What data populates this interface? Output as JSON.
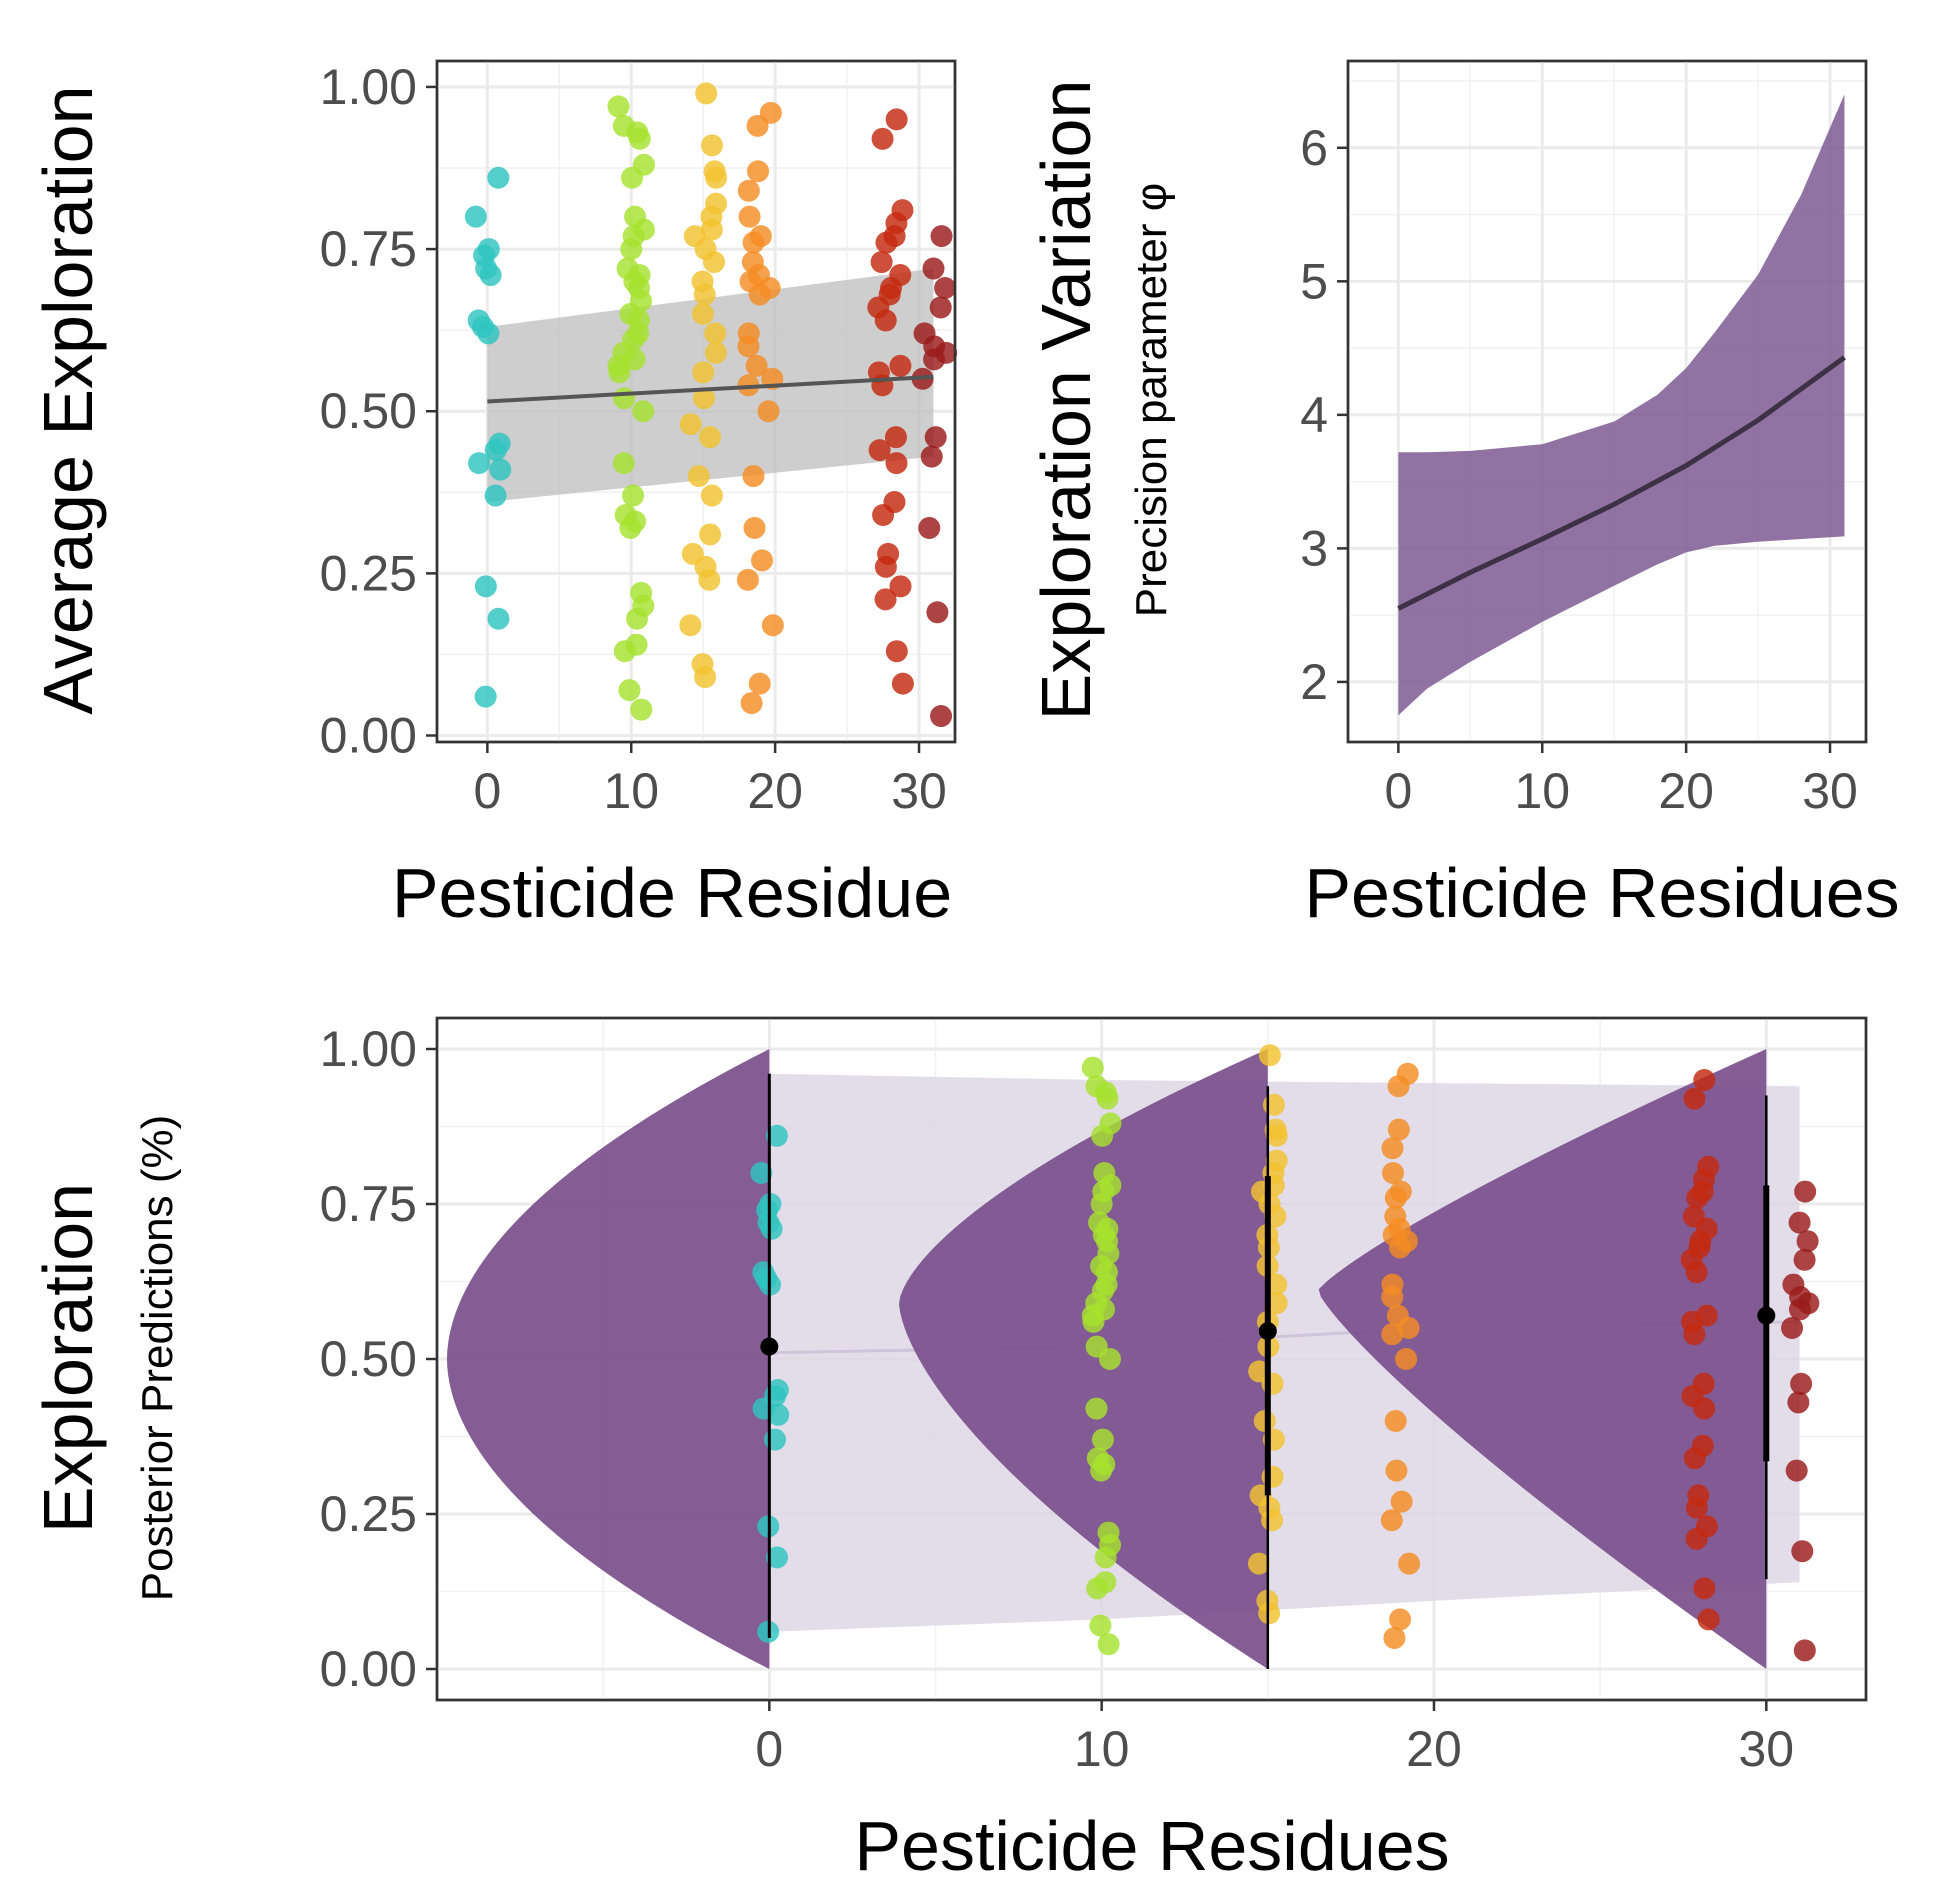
{
  "chart_data": [
    {
      "id": "average-exploration",
      "type": "scatter",
      "xlabel": "Pesticide Residue",
      "ylabel": "Average Exploration",
      "xlim": [
        -3.5,
        32.5
      ],
      "ylim": [
        -0.01,
        1.04
      ],
      "xticks": [
        0,
        10,
        20,
        30
      ],
      "xtick_labels": [
        "0",
        "10",
        "20",
        "30"
      ],
      "yticks": [
        0,
        0.25,
        0.5,
        0.75,
        1.0
      ],
      "ytick_labels": [
        "0.00",
        "0.25",
        "0.50",
        "0.75",
        "1.00"
      ],
      "grid": true,
      "fit_line": {
        "x": [
          0,
          31
        ],
        "y": [
          0.515,
          0.553
        ],
        "color": "#555555"
      },
      "ribbon": {
        "x": [
          0,
          31
        ],
        "lower": [
          0.36,
          0.43
        ],
        "upper": [
          0.63,
          0.72
        ],
        "color": "#bdbdbd"
      },
      "groups": [
        {
          "x": 0,
          "color": "#2ec4c0",
          "y": [
            0.86,
            0.8,
            0.75,
            0.74,
            0.72,
            0.71,
            0.64,
            0.63,
            0.62,
            0.45,
            0.44,
            0.42,
            0.41,
            0.37,
            0.23,
            0.18,
            0.06
          ]
        },
        {
          "x": 10,
          "color": "#a6e22e",
          "y": [
            0.97,
            0.94,
            0.93,
            0.92,
            0.88,
            0.86,
            0.8,
            0.78,
            0.77,
            0.75,
            0.72,
            0.71,
            0.7,
            0.69,
            0.67,
            0.65,
            0.64,
            0.62,
            0.61,
            0.59,
            0.58,
            0.57,
            0.56,
            0.52,
            0.5,
            0.42,
            0.37,
            0.34,
            0.33,
            0.32,
            0.22,
            0.2,
            0.18,
            0.14,
            0.13,
            0.07,
            0.04
          ]
        },
        {
          "x": 15,
          "color": "#f2c230",
          "y": [
            0.99,
            0.91,
            0.87,
            0.86,
            0.82,
            0.8,
            0.78,
            0.77,
            0.75,
            0.73,
            0.7,
            0.68,
            0.65,
            0.62,
            0.59,
            0.56,
            0.52,
            0.48,
            0.46,
            0.4,
            0.37,
            0.31,
            0.28,
            0.26,
            0.24,
            0.17,
            0.11,
            0.09
          ]
        },
        {
          "x": 19,
          "color": "#f48c23",
          "y": [
            0.96,
            0.94,
            0.87,
            0.84,
            0.8,
            0.77,
            0.76,
            0.73,
            0.71,
            0.7,
            0.69,
            0.68,
            0.62,
            0.6,
            0.57,
            0.55,
            0.54,
            0.5,
            0.4,
            0.32,
            0.27,
            0.24,
            0.17,
            0.08,
            0.05
          ]
        },
        {
          "x": 28,
          "color": "#c4290f",
          "y": [
            0.95,
            0.92,
            0.81,
            0.79,
            0.77,
            0.76,
            0.73,
            0.71,
            0.69,
            0.68,
            0.66,
            0.64,
            0.57,
            0.56,
            0.54,
            0.46,
            0.44,
            0.42,
            0.36,
            0.34,
            0.28,
            0.26,
            0.23,
            0.21,
            0.13,
            0.08
          ]
        },
        {
          "x": 31,
          "color": "#9a1b1b",
          "y": [
            0.77,
            0.72,
            0.69,
            0.66,
            0.62,
            0.6,
            0.59,
            0.58,
            0.55,
            0.46,
            0.43,
            0.32,
            0.19,
            0.03
          ]
        }
      ]
    },
    {
      "id": "exploration-variation",
      "type": "line",
      "xlabel": "Pesticide Residues",
      "ylabel": "Exploration Variation",
      "ysublabel": "Precision parameter φ",
      "xlim": [
        -3.5,
        32.5
      ],
      "ylim": [
        1.55,
        6.65
      ],
      "xticks": [
        0,
        10,
        20,
        30
      ],
      "xtick_labels": [
        "0",
        "10",
        "20",
        "30"
      ],
      "yticks": [
        2,
        3,
        4,
        5,
        6
      ],
      "ytick_labels": [
        "2",
        "3",
        "4",
        "5",
        "6"
      ],
      "grid": true,
      "line": {
        "x": [
          0,
          5,
          10,
          15,
          20,
          25,
          31
        ],
        "y": [
          2.55,
          2.82,
          3.07,
          3.33,
          3.62,
          3.96,
          4.43
        ],
        "color": "#3d3145"
      },
      "ribbon": {
        "x": [
          0,
          2,
          5,
          10,
          15,
          18,
          20,
          22,
          25,
          28,
          31
        ],
        "lower": [
          1.75,
          1.95,
          2.15,
          2.45,
          2.72,
          2.88,
          2.97,
          3.02,
          3.05,
          3.07,
          3.09
        ],
        "upper": [
          3.72,
          3.72,
          3.73,
          3.78,
          3.95,
          4.15,
          4.35,
          4.62,
          5.05,
          5.65,
          6.4
        ],
        "color": "#7c5a93"
      }
    },
    {
      "id": "posterior-predictions",
      "type": "scatter",
      "xlabel": "Pesticide Residues",
      "ylabel": "Exploration",
      "ysublabel": "Posterior Predictions (%)",
      "xlim": [
        -10,
        33
      ],
      "ylim": [
        -0.05,
        1.05
      ],
      "xticks": [
        0,
        10,
        20,
        30
      ],
      "xtick_labels": [
        "0",
        "10",
        "20",
        "30"
      ],
      "yticks": [
        0,
        0.25,
        0.5,
        0.75,
        1.0
      ],
      "ytick_labels": [
        "0.00",
        "0.25",
        "0.50",
        "0.75",
        "1.00"
      ],
      "grid": true,
      "ribbon": {
        "x": [
          0,
          10,
          20,
          31
        ],
        "lower": [
          0.06,
          0.08,
          0.11,
          0.14
        ],
        "upper": [
          0.96,
          0.95,
          0.945,
          0.94
        ],
        "color": "#dcd4e4"
      },
      "median_line": {
        "x": [
          0,
          10,
          20,
          31
        ],
        "y": [
          0.51,
          0.52,
          0.55,
          0.56
        ],
        "color": "#cfc4d9"
      },
      "half_eyes": [
        {
          "x": 0,
          "mode": 0.5,
          "width": 9.7,
          "power": 1.9,
          "color": "#7b4f8c"
        },
        {
          "x": 15,
          "mode": 0.59,
          "width": 11.1,
          "power": 1.55,
          "color": "#7b4f8c"
        },
        {
          "x": 30,
          "mode": 0.61,
          "width": 13.5,
          "power": 1.2,
          "color": "#7b4f8c"
        }
      ],
      "pointranges": [
        {
          "x": 0,
          "y": 0.52,
          "lo": 0.05,
          "hi": 0.96
        },
        {
          "x": 15,
          "y": 0.545,
          "lo": 0.28,
          "hi": 0.795,
          "lo2": 0.0,
          "hi2": 0.94
        },
        {
          "x": 30,
          "y": 0.57,
          "lo": 0.335,
          "hi": 0.78,
          "lo2": 0.145,
          "hi2": 0.925
        }
      ],
      "groups": [
        {
          "x": 0,
          "color": "#2ec4c0",
          "y": [
            0.86,
            0.8,
            0.75,
            0.74,
            0.72,
            0.71,
            0.64,
            0.63,
            0.62,
            0.45,
            0.44,
            0.42,
            0.41,
            0.37,
            0.23,
            0.18,
            0.06
          ]
        },
        {
          "x": 10,
          "color": "#a6e22e",
          "y": [
            0.97,
            0.94,
            0.93,
            0.92,
            0.88,
            0.86,
            0.8,
            0.78,
            0.77,
            0.75,
            0.72,
            0.71,
            0.7,
            0.69,
            0.67,
            0.65,
            0.64,
            0.62,
            0.61,
            0.59,
            0.58,
            0.57,
            0.56,
            0.52,
            0.5,
            0.42,
            0.37,
            0.34,
            0.33,
            0.32,
            0.22,
            0.2,
            0.18,
            0.14,
            0.13,
            0.07,
            0.04
          ]
        },
        {
          "x": 15,
          "color": "#f2c230",
          "y": [
            0.99,
            0.91,
            0.87,
            0.86,
            0.82,
            0.8,
            0.78,
            0.77,
            0.75,
            0.73,
            0.7,
            0.68,
            0.65,
            0.62,
            0.59,
            0.56,
            0.52,
            0.48,
            0.46,
            0.4,
            0.37,
            0.31,
            0.28,
            0.26,
            0.24,
            0.17,
            0.11,
            0.09
          ]
        },
        {
          "x": 19,
          "color": "#f48c23",
          "y": [
            0.96,
            0.94,
            0.87,
            0.84,
            0.8,
            0.77,
            0.76,
            0.73,
            0.71,
            0.7,
            0.69,
            0.68,
            0.62,
            0.6,
            0.57,
            0.55,
            0.54,
            0.5,
            0.4,
            0.32,
            0.27,
            0.24,
            0.17,
            0.08,
            0.05
          ]
        },
        {
          "x": 28,
          "color": "#c4290f",
          "y": [
            0.95,
            0.92,
            0.81,
            0.79,
            0.77,
            0.76,
            0.73,
            0.71,
            0.69,
            0.68,
            0.66,
            0.64,
            0.57,
            0.56,
            0.54,
            0.46,
            0.44,
            0.42,
            0.36,
            0.34,
            0.28,
            0.26,
            0.23,
            0.21,
            0.13,
            0.08
          ]
        },
        {
          "x": 31,
          "color": "#9a1b1b",
          "y": [
            0.77,
            0.72,
            0.69,
            0.66,
            0.62,
            0.6,
            0.59,
            0.58,
            0.55,
            0.46,
            0.43,
            0.32,
            0.19,
            0.03
          ]
        }
      ]
    }
  ]
}
